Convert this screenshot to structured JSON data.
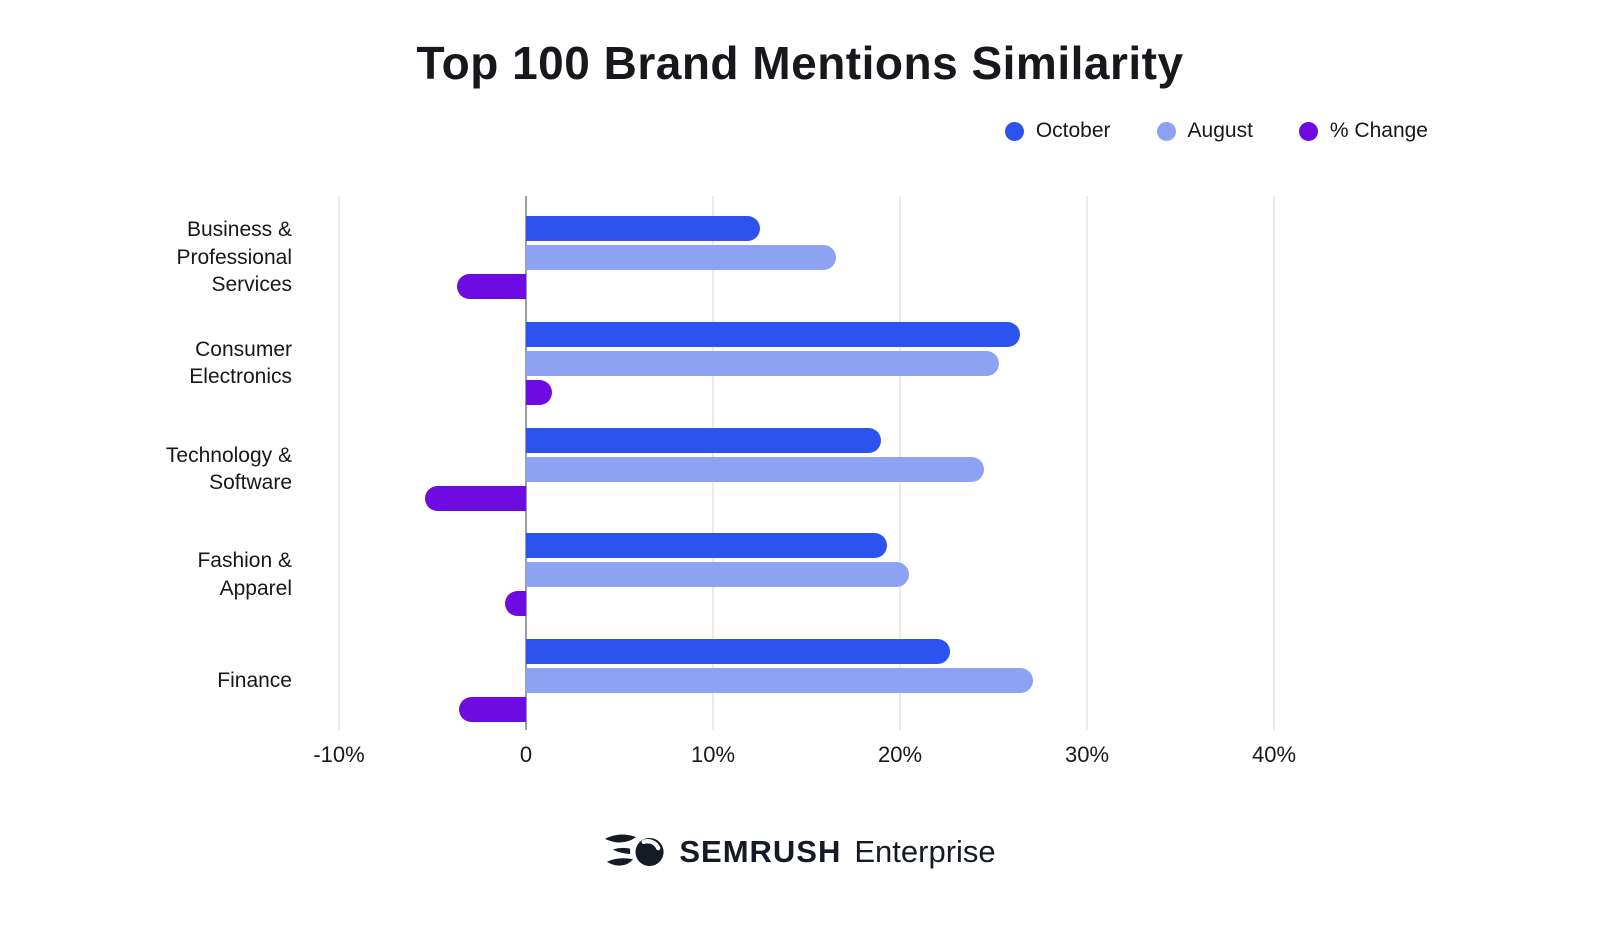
{
  "title": "Top 100 Brand Mentions Similarity",
  "colors": {
    "october": "#2D53EF",
    "august": "#8EA2F4",
    "pct_change": "#6E0BE0",
    "text": "#17181C",
    "gridline": "#EBEBED",
    "zero_line": "#9B9EA3"
  },
  "chart_data": {
    "type": "bar",
    "orientation": "horizontal",
    "title": "Top 100 Brand Mentions Similarity",
    "categories": [
      "Business & Professional Services",
      "Consumer Electronics",
      "Technology & Software",
      "Fashion & Apparel",
      "Finance"
    ],
    "category_lines": [
      [
        "Business &",
        "Professional",
        "Services"
      ],
      [
        "Consumer",
        "Electronics"
      ],
      [
        "Technology &",
        "Software"
      ],
      [
        "Fashion &",
        "Apparel"
      ],
      [
        "Finance"
      ]
    ],
    "series": [
      {
        "name": "October",
        "color": "#2D53EF",
        "values": [
          12.5,
          26.4,
          19.0,
          19.3,
          22.7
        ]
      },
      {
        "name": "August",
        "color": "#8EA2F4",
        "values": [
          16.6,
          25.3,
          24.5,
          20.5,
          27.1
        ]
      },
      {
        "name": "% Change",
        "color": "#6E0BE0",
        "values": [
          -3.7,
          1.4,
          -5.4,
          -1.1,
          -3.6
        ]
      }
    ],
    "xlim": [
      -10,
      50
    ],
    "xticks": [
      {
        "value": -10,
        "label": "-10%"
      },
      {
        "value": 0,
        "label": "0"
      },
      {
        "value": 10,
        "label": "10%"
      },
      {
        "value": 20,
        "label": "20%"
      },
      {
        "value": 30,
        "label": "30%"
      },
      {
        "value": 40,
        "label": "40%"
      }
    ],
    "grid": true,
    "legend_position": "top-right"
  },
  "footer": {
    "brand": "SEMRUSH",
    "suffix": "Enterprise"
  }
}
